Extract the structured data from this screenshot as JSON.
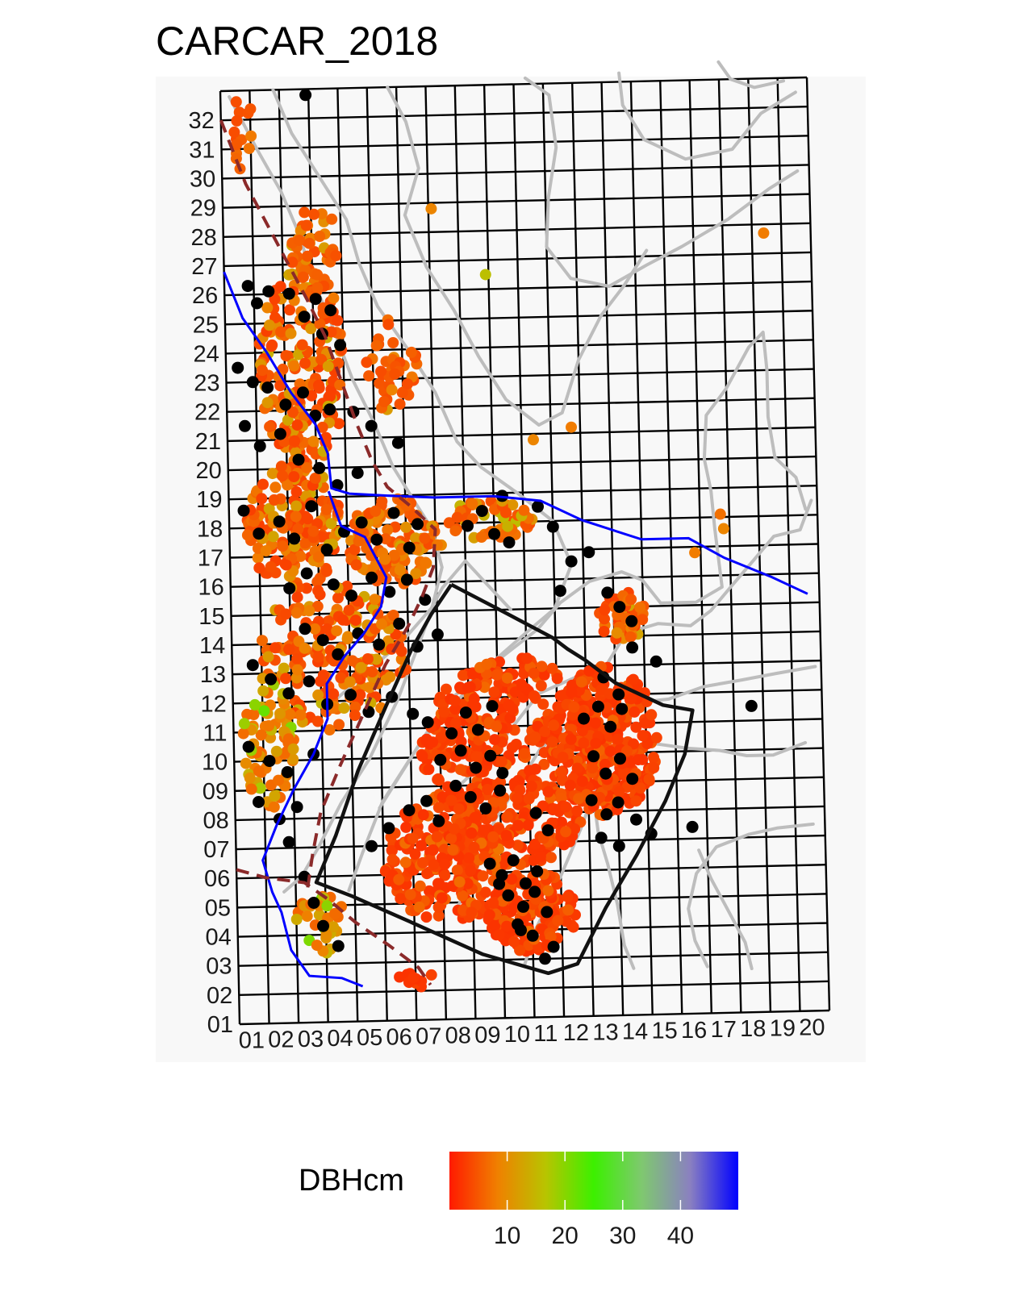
{
  "title": "CARCAR_2018",
  "chart_data": {
    "type": "scatter",
    "title": "CARCAR_2018",
    "x_ticks": [
      "01",
      "02",
      "03",
      "04",
      "05",
      "06",
      "07",
      "08",
      "09",
      "10",
      "11",
      "12",
      "13",
      "14",
      "15",
      "16",
      "17",
      "18",
      "19",
      "20"
    ],
    "y_ticks": [
      "01",
      "02",
      "03",
      "04",
      "05",
      "06",
      "07",
      "08",
      "09",
      "10",
      "11",
      "12",
      "13",
      "14",
      "15",
      "16",
      "17",
      "18",
      "19",
      "20",
      "21",
      "22",
      "23",
      "24",
      "25",
      "26",
      "27",
      "28",
      "29",
      "30",
      "31",
      "32"
    ],
    "xlim": [
      0,
      20
    ],
    "ylim": [
      0,
      32
    ],
    "grid": true,
    "legend": {
      "title": "DBHcm",
      "type": "colorbar",
      "placement": "bottom",
      "range": [
        0,
        50
      ],
      "ticks": [
        "10",
        "20",
        "30",
        "40"
      ],
      "colors": [
        "#ff1a00",
        "#f08000",
        "#b8c400",
        "#3cf000",
        "#7fc870",
        "#8a80c0",
        "#0000ff"
      ]
    },
    "colors": {
      "dead": "#000000",
      "contour": "#bdbdbd",
      "stream": "#0000ff",
      "trail": "#8b2a2a",
      "boundary": "#111111",
      "panel": "#f8f8f8"
    },
    "layers": [
      {
        "name": "live trees",
        "encoding": "color = DBHcm"
      },
      {
        "name": "dead trees",
        "encoding": "black"
      },
      {
        "name": "topographic contours"
      },
      {
        "name": "stream"
      },
      {
        "name": "trail"
      },
      {
        "name": "plot boundary"
      }
    ],
    "dead_points": [
      [
        2.9,
        31.8
      ],
      [
        0.8,
        25.3
      ],
      [
        1.1,
        24.7
      ],
      [
        1.5,
        25.1
      ],
      [
        2.2,
        25.0
      ],
      [
        3.1,
        24.8
      ],
      [
        3.6,
        24.4
      ],
      [
        2.7,
        24.2
      ],
      [
        3.3,
        23.6
      ],
      [
        3.9,
        23.2
      ],
      [
        0.4,
        22.5
      ],
      [
        0.9,
        22.0
      ],
      [
        1.4,
        21.8
      ],
      [
        2.0,
        21.2
      ],
      [
        2.6,
        21.6
      ],
      [
        3.0,
        20.8
      ],
      [
        3.5,
        21.0
      ],
      [
        4.3,
        20.9
      ],
      [
        4.9,
        20.4
      ],
      [
        5.8,
        19.8
      ],
      [
        0.6,
        20.5
      ],
      [
        1.1,
        19.8
      ],
      [
        1.8,
        20.2
      ],
      [
        2.4,
        19.3
      ],
      [
        3.1,
        19.0
      ],
      [
        3.7,
        18.4
      ],
      [
        4.4,
        18.8
      ],
      [
        0.5,
        17.6
      ],
      [
        1.0,
        16.8
      ],
      [
        1.7,
        17.2
      ],
      [
        2.2,
        16.6
      ],
      [
        2.8,
        17.7
      ],
      [
        3.3,
        16.2
      ],
      [
        3.9,
        16.8
      ],
      [
        4.5,
        17.1
      ],
      [
        5.0,
        16.5
      ],
      [
        5.6,
        17.4
      ],
      [
        6.1,
        16.2
      ],
      [
        6.4,
        17.0
      ],
      [
        2.0,
        14.9
      ],
      [
        2.6,
        15.4
      ],
      [
        3.5,
        15.0
      ],
      [
        4.1,
        14.6
      ],
      [
        4.8,
        15.2
      ],
      [
        5.4,
        14.7
      ],
      [
        6.0,
        15.1
      ],
      [
        6.6,
        14.4
      ],
      [
        2.5,
        13.5
      ],
      [
        3.1,
        13.1
      ],
      [
        3.6,
        12.6
      ],
      [
        4.3,
        13.3
      ],
      [
        5.0,
        12.9
      ],
      [
        5.7,
        13.6
      ],
      [
        6.3,
        12.8
      ],
      [
        7.0,
        13.2
      ],
      [
        0.7,
        12.3
      ],
      [
        1.3,
        11.8
      ],
      [
        1.9,
        11.3
      ],
      [
        2.6,
        11.7
      ],
      [
        3.2,
        10.9
      ],
      [
        4.0,
        11.2
      ],
      [
        4.6,
        10.6
      ],
      [
        5.4,
        11.1
      ],
      [
        6.1,
        10.5
      ],
      [
        0.5,
        9.5
      ],
      [
        1.2,
        9.0
      ],
      [
        1.8,
        8.6
      ],
      [
        2.7,
        9.2
      ],
      [
        0.8,
        7.6
      ],
      [
        1.5,
        7.0
      ],
      [
        2.1,
        7.4
      ],
      [
        1.8,
        6.2
      ],
      [
        6.6,
        10.2
      ],
      [
        7.4,
        9.8
      ],
      [
        7.9,
        10.5
      ],
      [
        8.3,
        9.9
      ],
      [
        8.8,
        10.7
      ],
      [
        7.0,
        8.9
      ],
      [
        7.7,
        9.2
      ],
      [
        8.2,
        8.6
      ],
      [
        8.7,
        9.0
      ],
      [
        9.1,
        8.4
      ],
      [
        7.5,
        8.0
      ],
      [
        8.0,
        7.6
      ],
      [
        8.5,
        7.2
      ],
      [
        9.0,
        7.8
      ],
      [
        6.5,
        7.5
      ],
      [
        6.9,
        6.8
      ],
      [
        5.9,
        7.2
      ],
      [
        5.2,
        6.6
      ],
      [
        4.6,
        6.0
      ],
      [
        10.2,
        7.0
      ],
      [
        10.6,
        6.4
      ],
      [
        8.6,
        5.3
      ],
      [
        9.0,
        4.9
      ],
      [
        9.4,
        5.4
      ],
      [
        9.8,
        4.6
      ],
      [
        10.2,
        5.0
      ],
      [
        9.2,
        4.2
      ],
      [
        9.7,
        3.8
      ],
      [
        10.1,
        4.3
      ],
      [
        10.5,
        3.6
      ],
      [
        9.5,
        3.2
      ],
      [
        10.0,
        2.8
      ],
      [
        10.7,
        2.4
      ],
      [
        8.9,
        4.6
      ],
      [
        11.9,
        10.2
      ],
      [
        12.4,
        10.6
      ],
      [
        12.8,
        9.9
      ],
      [
        13.2,
        10.5
      ],
      [
        12.2,
        8.9
      ],
      [
        12.6,
        8.3
      ],
      [
        13.1,
        8.8
      ],
      [
        13.5,
        8.1
      ],
      [
        12.1,
        7.4
      ],
      [
        12.6,
        6.9
      ],
      [
        13.0,
        7.3
      ],
      [
        13.6,
        6.7
      ],
      [
        12.4,
        6.1
      ],
      [
        13.0,
        5.8
      ],
      [
        14.1,
        6.2
      ],
      [
        12.6,
        11.6
      ],
      [
        13.1,
        11.0
      ],
      [
        12.8,
        14.5
      ],
      [
        13.2,
        14.0
      ],
      [
        13.6,
        13.5
      ],
      [
        12.2,
        15.9
      ],
      [
        10.5,
        17.5
      ],
      [
        11.0,
        16.8
      ],
      [
        11.6,
        15.6
      ],
      [
        11.2,
        14.6
      ],
      [
        9.3,
        17.9
      ],
      [
        8.6,
        17.4
      ],
      [
        8.1,
        16.9
      ],
      [
        9.0,
        16.6
      ],
      [
        9.5,
        16.3
      ],
      [
        17.6,
        10.5
      ],
      [
        15.5,
        6.4
      ],
      [
        2.3,
        5.0
      ],
      [
        2.6,
        4.1
      ],
      [
        2.9,
        3.3
      ],
      [
        3.4,
        2.6
      ],
      [
        14.4,
        12.1
      ],
      [
        13.6,
        12.6
      ],
      [
        9.6,
        3.0
      ],
      [
        10.4,
        2.0
      ]
    ]
  }
}
